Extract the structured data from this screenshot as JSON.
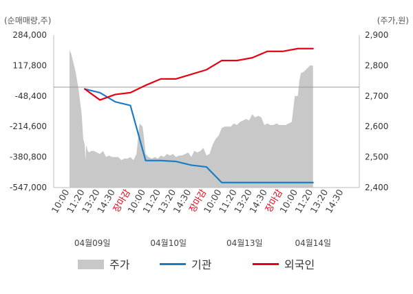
{
  "chart_data": {
    "type": "line",
    "left_axis": {
      "unit_label": "(순매매량,주)",
      "ticks": [
        "284,000",
        "117,800",
        "-48,400",
        "-214,600",
        "-380,800",
        "-547,000"
      ],
      "range": [
        -547000,
        284000
      ]
    },
    "right_axis": {
      "unit_label": "(주가,원)",
      "ticks": [
        "2,900",
        "2,800",
        "2,700",
        "2,600",
        "2,500",
        "2,400"
      ],
      "range": [
        2400,
        2900
      ]
    },
    "zero_reference": 0,
    "x_ticks": [
      {
        "label": "10:00",
        "kind": "time"
      },
      {
        "label": "11:20",
        "kind": "time"
      },
      {
        "label": "13:20",
        "kind": "time"
      },
      {
        "label": "14:30",
        "kind": "time"
      },
      {
        "label": "장마감",
        "kind": "close"
      },
      {
        "label": "10:00",
        "kind": "time"
      },
      {
        "label": "11:20",
        "kind": "time"
      },
      {
        "label": "13:20",
        "kind": "time"
      },
      {
        "label": "14:30",
        "kind": "time"
      },
      {
        "label": "장마감",
        "kind": "close"
      },
      {
        "label": "10:00",
        "kind": "time"
      },
      {
        "label": "11:20",
        "kind": "time"
      },
      {
        "label": "13:20",
        "kind": "time"
      },
      {
        "label": "14:30",
        "kind": "time"
      },
      {
        "label": "장마감",
        "kind": "close"
      },
      {
        "label": "10:00",
        "kind": "time"
      },
      {
        "label": "11:20",
        "kind": "time"
      },
      {
        "label": "13:20",
        "kind": "time"
      },
      {
        "label": "14:30",
        "kind": "time"
      }
    ],
    "dates": [
      "04월09일",
      "04월10일",
      "04월13일",
      "04월14일"
    ],
    "series": [
      {
        "name": "주가",
        "axis": "right",
        "style": "area",
        "color": "#c8c8c8",
        "x": [
          0,
          0.1,
          0.2,
          0.4,
          0.6,
          0.8,
          0.9,
          1.0,
          1.05,
          1.1,
          1.2,
          1.3,
          1.4,
          1.6,
          1.8,
          2.0,
          2.2,
          2.4,
          2.6,
          2.8,
          3.0,
          3.2,
          3.4,
          3.6,
          3.8,
          4.0,
          4.2,
          4.4,
          4.6,
          4.8,
          4.9,
          5.0,
          5.2,
          5.4,
          5.6,
          5.8,
          6.0,
          6.2,
          6.4,
          6.6,
          6.8,
          7.0,
          7.2,
          7.4,
          7.6,
          7.8,
          8.0,
          8.2,
          8.4,
          8.6,
          8.8,
          9.0,
          9.2,
          9.4,
          9.6,
          9.8,
          10.0,
          10.2,
          10.4,
          10.6,
          10.8,
          11.0,
          11.2,
          11.4,
          11.6,
          11.8,
          12.0,
          12.2,
          12.4,
          12.6,
          12.8,
          13.0,
          13.2,
          13.4,
          13.6,
          13.8,
          14.0,
          14.2,
          14.4,
          14.6,
          14.8,
          15.0,
          15.1,
          15.2,
          15.4,
          15.6,
          15.8,
          16.0
        ],
        "values": [
          2850,
          2840,
          2820,
          2780,
          2720,
          2640,
          2560,
          2540,
          2490,
          2540,
          2520,
          2515,
          2520,
          2520,
          2515,
          2510,
          2520,
          2500,
          2505,
          2500,
          2500,
          2500,
          2490,
          2495,
          2495,
          2500,
          2490,
          2510,
          2610,
          2600,
          2560,
          2510,
          2500,
          2495,
          2500,
          2495,
          2505,
          2500,
          2510,
          2505,
          2510,
          2500,
          2505,
          2505,
          2510,
          2515,
          2500,
          2520,
          2515,
          2520,
          2530,
          2505,
          2510,
          2540,
          2560,
          2570,
          2595,
          2600,
          2600,
          2600,
          2610,
          2605,
          2615,
          2620,
          2625,
          2620,
          2640,
          2630,
          2635,
          2630,
          2605,
          2610,
          2605,
          2605,
          2610,
          2605,
          2605,
          2605,
          2610,
          2615,
          2700,
          2700,
          2750,
          2775,
          2780,
          2790,
          2800,
          2800
        ]
      },
      {
        "name": "기관",
        "axis": "left",
        "style": "line",
        "color": "#1a7dc3",
        "x": [
          1,
          2,
          3,
          4,
          5,
          6,
          7,
          8,
          9,
          10,
          11,
          12,
          13,
          14,
          15,
          16
        ],
        "values": [
          -10000,
          -30000,
          -80000,
          -100000,
          -400000,
          -400000,
          -405000,
          -425000,
          -435000,
          -520000,
          -520000,
          -520000,
          -520000,
          -520000,
          -520000,
          -520000
        ]
      },
      {
        "name": "외국인",
        "axis": "left",
        "style": "line",
        "color": "#e60012",
        "x": [
          1,
          2,
          3,
          4,
          5,
          6,
          7,
          8,
          9,
          10,
          11,
          12,
          13,
          14,
          15,
          16
        ],
        "values": [
          -10000,
          -70000,
          -40000,
          -30000,
          10000,
          45000,
          45000,
          70000,
          95000,
          145000,
          145000,
          160000,
          195000,
          195000,
          210000,
          210000
        ]
      }
    ],
    "legend_position": "bottom",
    "grid": false
  },
  "legend": {
    "items": [
      {
        "label": "주가",
        "color": "#c8c8c8"
      },
      {
        "label": "기관",
        "color": "#1a7dc3"
      },
      {
        "label": "외국인",
        "color": "#e60012"
      }
    ]
  }
}
